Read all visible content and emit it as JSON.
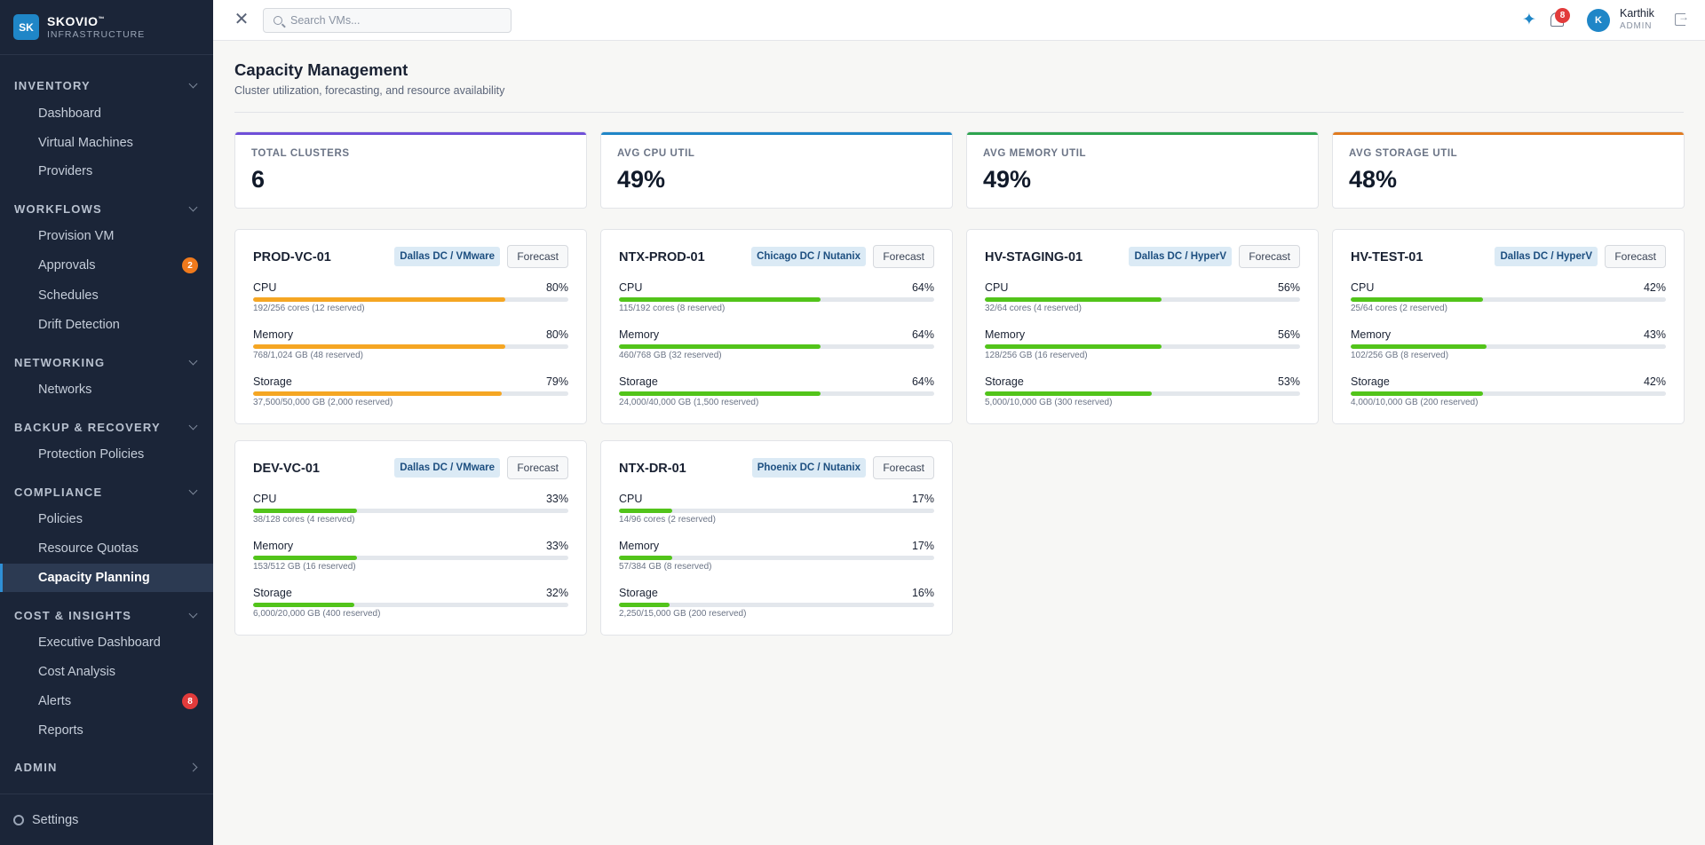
{
  "brand": {
    "logo": "SK",
    "name": "SKOVIO",
    "trademark": "™",
    "subtitle": "INFRASTRUCTURE"
  },
  "sidebar": {
    "sections": [
      {
        "label": "INVENTORY",
        "expanded": true
      },
      {
        "label": "WORKFLOWS",
        "expanded": true
      },
      {
        "label": "NETWORKING",
        "expanded": true
      },
      {
        "label": "BACKUP & RECOVERY",
        "expanded": true
      },
      {
        "label": "COMPLIANCE",
        "expanded": true
      },
      {
        "label": "COST & INSIGHTS",
        "expanded": true
      },
      {
        "label": "ADMIN",
        "expanded": false
      }
    ],
    "items": [
      {
        "label": "Dashboard"
      },
      {
        "label": "Virtual Machines"
      },
      {
        "label": "Providers"
      },
      {
        "label": "Provision VM"
      },
      {
        "label": "Approvals",
        "badge": "2",
        "badge_color": "#f07a1c"
      },
      {
        "label": "Schedules"
      },
      {
        "label": "Drift Detection"
      },
      {
        "label": "Networks"
      },
      {
        "label": "Protection Policies"
      },
      {
        "label": "Policies"
      },
      {
        "label": "Resource Quotas"
      },
      {
        "label": "Capacity Planning",
        "active": true
      },
      {
        "label": "Executive Dashboard"
      },
      {
        "label": "Cost Analysis"
      },
      {
        "label": "Alerts",
        "badge": "8",
        "badge_color": "#e23b3b"
      },
      {
        "label": "Reports"
      }
    ],
    "footer": {
      "label": "Settings",
      "icon": "gear-icon"
    }
  },
  "topbar": {
    "search_placeholder": "Search VMs...",
    "notifications_count": "8",
    "user": {
      "initial": "K",
      "name": "Karthik",
      "role": "ADMIN"
    }
  },
  "page": {
    "title": "Capacity Management",
    "subtitle": "Cluster utilization, forecasting, and resource availability"
  },
  "stats": [
    {
      "label": "TOTAL CLUSTERS",
      "value": "6",
      "color": "#6f4fd8"
    },
    {
      "label": "AVG CPU UTIL",
      "value": "49%",
      "color": "#1f86c7"
    },
    {
      "label": "AVG MEMORY UTIL",
      "value": "49%",
      "color": "#2ea44f"
    },
    {
      "label": "AVG STORAGE UTIL",
      "value": "48%",
      "color": "#e07a1f"
    }
  ],
  "forecast_label": "Forecast",
  "clusters": [
    {
      "name": "PROD-VC-01",
      "tag": "Dallas DC / VMware",
      "metrics": [
        {
          "name": "CPU",
          "pct": "80%",
          "value": 0.8,
          "detail": "192/256 cores (12 reserved)",
          "color": "#f5a623"
        },
        {
          "name": "Memory",
          "pct": "80%",
          "value": 0.8,
          "detail": "768/1,024 GB (48 reserved)",
          "color": "#f5a623"
        },
        {
          "name": "Storage",
          "pct": "79%",
          "value": 0.79,
          "detail": "37,500/50,000 GB (2,000 reserved)",
          "color": "#f5a623"
        }
      ]
    },
    {
      "name": "NTX-PROD-01",
      "tag": "Chicago DC / Nutanix",
      "metrics": [
        {
          "name": "CPU",
          "pct": "64%",
          "value": 0.64,
          "detail": "115/192 cores (8 reserved)",
          "color": "#52c41a"
        },
        {
          "name": "Memory",
          "pct": "64%",
          "value": 0.64,
          "detail": "460/768 GB (32 reserved)",
          "color": "#52c41a"
        },
        {
          "name": "Storage",
          "pct": "64%",
          "value": 0.64,
          "detail": "24,000/40,000 GB (1,500 reserved)",
          "color": "#52c41a"
        }
      ]
    },
    {
      "name": "HV-STAGING-01",
      "tag": "Dallas DC / HyperV",
      "metrics": [
        {
          "name": "CPU",
          "pct": "56%",
          "value": 0.56,
          "detail": "32/64 cores (4 reserved)",
          "color": "#52c41a"
        },
        {
          "name": "Memory",
          "pct": "56%",
          "value": 0.56,
          "detail": "128/256 GB (16 reserved)",
          "color": "#52c41a"
        },
        {
          "name": "Storage",
          "pct": "53%",
          "value": 0.53,
          "detail": "5,000/10,000 GB (300 reserved)",
          "color": "#52c41a"
        }
      ]
    },
    {
      "name": "HV-TEST-01",
      "tag": "Dallas DC / HyperV",
      "metrics": [
        {
          "name": "CPU",
          "pct": "42%",
          "value": 0.42,
          "detail": "25/64 cores (2 reserved)",
          "color": "#52c41a"
        },
        {
          "name": "Memory",
          "pct": "43%",
          "value": 0.43,
          "detail": "102/256 GB (8 reserved)",
          "color": "#52c41a"
        },
        {
          "name": "Storage",
          "pct": "42%",
          "value": 0.42,
          "detail": "4,000/10,000 GB (200 reserved)",
          "color": "#52c41a"
        }
      ]
    },
    {
      "name": "DEV-VC-01",
      "tag": "Dallas DC / VMware",
      "metrics": [
        {
          "name": "CPU",
          "pct": "33%",
          "value": 0.33,
          "detail": "38/128 cores (4 reserved)",
          "color": "#52c41a"
        },
        {
          "name": "Memory",
          "pct": "33%",
          "value": 0.33,
          "detail": "153/512 GB (16 reserved)",
          "color": "#52c41a"
        },
        {
          "name": "Storage",
          "pct": "32%",
          "value": 0.32,
          "detail": "6,000/20,000 GB (400 reserved)",
          "color": "#52c41a"
        }
      ]
    },
    {
      "name": "NTX-DR-01",
      "tag": "Phoenix DC / Nutanix",
      "metrics": [
        {
          "name": "CPU",
          "pct": "17%",
          "value": 0.17,
          "detail": "14/96 cores (2 reserved)",
          "color": "#52c41a"
        },
        {
          "name": "Memory",
          "pct": "17%",
          "value": 0.17,
          "detail": "57/384 GB (8 reserved)",
          "color": "#52c41a"
        },
        {
          "name": "Storage",
          "pct": "16%",
          "value": 0.16,
          "detail": "2,250/15,000 GB (200 reserved)",
          "color": "#52c41a"
        }
      ]
    }
  ]
}
